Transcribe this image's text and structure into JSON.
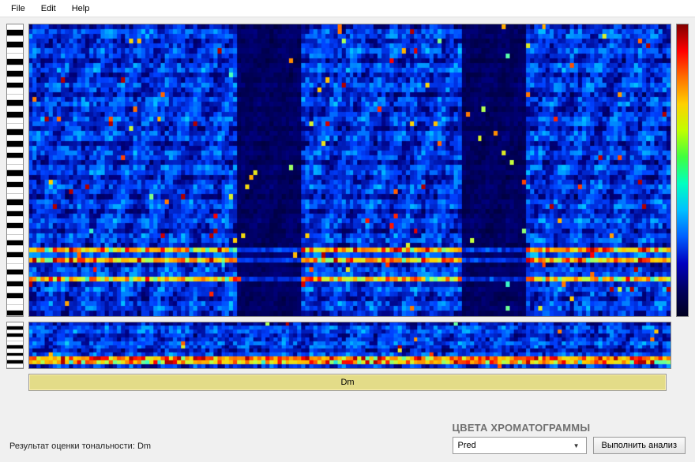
{
  "menu": {
    "items": [
      "File",
      "Edit",
      "Help"
    ]
  },
  "visualization": {
    "type": "spectrogram",
    "background_color": "#000033",
    "piano": {
      "upper_keys": 50,
      "lower_keys": 12,
      "white_key_color": "#ffffff",
      "black_key_color": "#000000",
      "pattern": [
        "w",
        "b",
        "w",
        "b",
        "w",
        "w",
        "b",
        "w",
        "b",
        "w",
        "b",
        "w"
      ]
    },
    "colorbar": {
      "gradient": [
        "#800000",
        "#ff0000",
        "#ff7000",
        "#ffd000",
        "#c0ff00",
        "#40ff40",
        "#00ffc0",
        "#00c0ff",
        "#0060ff",
        "#0000c0",
        "#000060",
        "#000020"
      ]
    },
    "upper_panel": {
      "width_cells": 160,
      "height_cells": 60,
      "dark_bands_x": [
        [
          52,
          16
        ],
        [
          108,
          16
        ]
      ],
      "hot_rows": [
        46,
        48,
        52
      ]
    },
    "lower_panel": {
      "width_cells": 160,
      "height_cells": 12,
      "hot_rows": [
        9,
        10
      ]
    }
  },
  "result_bar": {
    "label": "Dm",
    "background_color": "#e3dc88",
    "border_color": "#999999"
  },
  "footer": {
    "result_prefix": "Результат оценки тональности: ",
    "result_value": "Dm",
    "section_title": "ЦВЕТА ХРОМАТОГРАММЫ",
    "dropdown_selected": "Pred",
    "analyze_button": "Выполнить анализ"
  }
}
